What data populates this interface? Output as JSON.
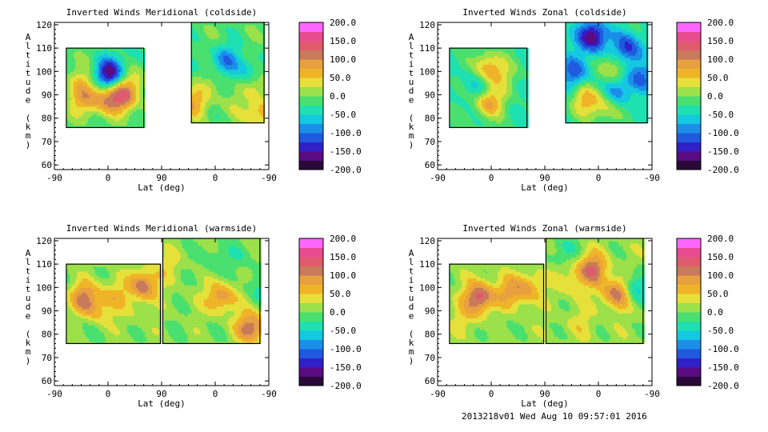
{
  "footer": "2013218v01 Wed Aug 10 09:57:01 2016",
  "colorbar": {
    "ticks": [
      "200.0",
      "150.0",
      "100.0",
      "50.0",
      "0.0",
      "-50.0",
      "-100.0",
      "-150.0",
      "-200.0"
    ],
    "range": [
      -200,
      200
    ],
    "colors": [
      "#2a0a3a",
      "#5a0a82",
      "#3020c8",
      "#1f5adf",
      "#1b8fe8",
      "#14c8e0",
      "#1ee0b0",
      "#4ae070",
      "#9ce04a",
      "#e6e03a",
      "#f0b428",
      "#e8a040",
      "#c87a5a",
      "#e05a6e",
      "#e84a90",
      "#ff66ff"
    ]
  },
  "chart_data": [
    {
      "type": "heatmap",
      "title": "Inverted Winds Meridional (coldside)",
      "xlabel": "Lat (deg)",
      "ylabel": "Altitude (km)",
      "xticks": [
        "-90",
        "0",
        "90",
        "0",
        "-90"
      ],
      "yticks": [
        "60",
        "70",
        "80",
        "90",
        "100",
        "110",
        "120"
      ],
      "ylim": [
        58,
        121
      ],
      "domain": [
        [
          -70,
          60,
          76,
          110
        ],
        [
          140,
          262,
          78,
          121
        ]
      ],
      "centers": [
        [
          -42,
          96,
          45
        ],
        [
          -3,
          89,
          95
        ],
        [
          -40,
          88,
          80
        ],
        [
          3,
          99,
          -170
        ],
        [
          25,
          89,
          115
        ],
        [
          40,
          96,
          55
        ],
        [
          34,
          107,
          -20
        ],
        [
          142,
          87,
          85
        ],
        [
          160,
          102,
          -15
        ],
        [
          178,
          96,
          25
        ],
        [
          210,
          86,
          25
        ],
        [
          198,
          105,
          -75
        ],
        [
          235,
          100,
          -55
        ],
        [
          250,
          95,
          50
        ],
        [
          256,
          82,
          80
        ]
      ],
      "base": -10
    },
    {
      "type": "heatmap",
      "title": "Inverted Winds Zonal (coldside)",
      "xlabel": "Lat (deg)",
      "ylabel": "Altitude (km)",
      "xticks": [
        "-90",
        "0",
        "90",
        "0",
        "-90"
      ],
      "yticks": [
        "60",
        "70",
        "80",
        "90",
        "100",
        "110",
        "120"
      ],
      "ylim": [
        58,
        121
      ],
      "domain": [
        [
          -70,
          60,
          76,
          110
        ],
        [
          125,
          262,
          78,
          121
        ]
      ],
      "centers": [
        [
          -5,
          102,
          95
        ],
        [
          -5,
          87,
          110
        ],
        [
          -45,
          100,
          -5
        ],
        [
          20,
          98,
          40
        ],
        [
          -25,
          93,
          -40
        ],
        [
          140,
          100,
          -90
        ],
        [
          158,
          88,
          80
        ],
        [
          190,
          85,
          60
        ],
        [
          205,
          101,
          70
        ],
        [
          212,
          92,
          -75
        ],
        [
          248,
          98,
          -80
        ],
        [
          170,
          115,
          -160
        ],
        [
          230,
          110,
          -110
        ]
      ],
      "base": -25
    },
    {
      "type": "heatmap",
      "title": "Inverted Winds Meridional (warmside)",
      "xlabel": "Lat (deg)",
      "ylabel": "Altitude (km)",
      "xticks": [
        "-90",
        "0",
        "90",
        "0",
        "-90"
      ],
      "yticks": [
        "60",
        "70",
        "80",
        "90",
        "100",
        "110",
        "120"
      ],
      "ylim": [
        58,
        121
      ],
      "domain": [
        [
          -70,
          88,
          76,
          110
        ],
        [
          92,
          255,
          76,
          121
        ]
      ],
      "centers": [
        [
          -40,
          96,
          95
        ],
        [
          -20,
          90,
          55
        ],
        [
          10,
          97,
          50
        ],
        [
          60,
          101,
          115
        ],
        [
          -35,
          85,
          -15
        ],
        [
          40,
          88,
          15
        ],
        [
          150,
          95,
          10
        ],
        [
          190,
          96,
          90
        ],
        [
          230,
          96,
          10
        ],
        [
          240,
          83,
          120
        ],
        [
          180,
          112,
          -30
        ],
        [
          100,
          110,
          30
        ],
        [
          225,
          114,
          -20
        ],
        [
          250,
          100,
          -40
        ]
      ],
      "base": 5
    },
    {
      "type": "heatmap",
      "title": "Inverted Winds Zonal (warmside)",
      "xlabel": "Lat (deg)",
      "ylabel": "Altitude (km)",
      "xticks": [
        "-90",
        "0",
        "90",
        "0",
        "-90"
      ],
      "yticks": [
        "60",
        "70",
        "80",
        "90",
        "100",
        "110",
        "120"
      ],
      "ylim": [
        58,
        121
      ],
      "domain": [
        [
          -70,
          88,
          76,
          110
        ],
        [
          92,
          255,
          76,
          121
        ]
      ],
      "centers": [
        [
          -20,
          96,
          130
        ],
        [
          -40,
          88,
          30
        ],
        [
          30,
          98,
          60
        ],
        [
          60,
          100,
          70
        ],
        [
          10,
          84,
          -10
        ],
        [
          130,
          103,
          40
        ],
        [
          170,
          108,
          115
        ],
        [
          195,
          97,
          20
        ],
        [
          215,
          98,
          110
        ],
        [
          240,
          100,
          -90
        ],
        [
          150,
          85,
          25
        ],
        [
          120,
          116,
          -40
        ]
      ],
      "base": 10
    }
  ]
}
